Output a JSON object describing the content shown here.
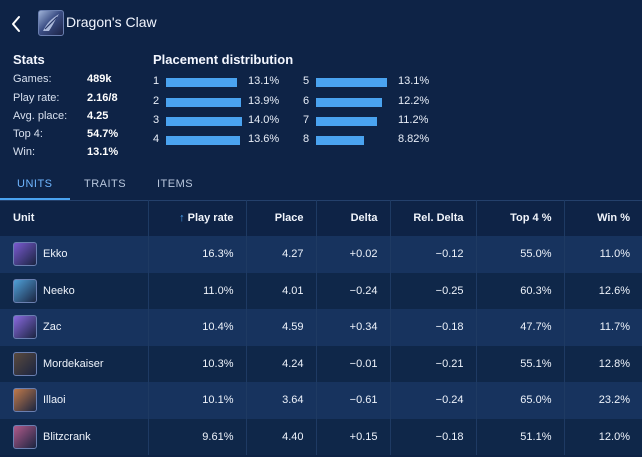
{
  "header": {
    "title": "Dragon's Claw",
    "back_icon": "chevron-left-icon",
    "item_icon": "dragons-claw-item-icon"
  },
  "stats": {
    "title": "Stats",
    "rows": [
      {
        "label": "Games:",
        "value": "489k"
      },
      {
        "label": "Play rate:",
        "value": "2.16/8"
      },
      {
        "label": "Avg. place:",
        "value": "4.25"
      },
      {
        "label": "Top 4:",
        "value": "54.7%"
      },
      {
        "label": "Win:",
        "value": "13.1%"
      }
    ]
  },
  "placement": {
    "title": "Placement distribution",
    "items": [
      {
        "place": "1",
        "pct": "13.1%",
        "value": 13.1
      },
      {
        "place": "2",
        "pct": "13.9%",
        "value": 13.9
      },
      {
        "place": "3",
        "pct": "14.0%",
        "value": 14.0
      },
      {
        "place": "4",
        "pct": "13.6%",
        "value": 13.6
      },
      {
        "place": "5",
        "pct": "13.1%",
        "value": 13.1
      },
      {
        "place": "6",
        "pct": "12.2%",
        "value": 12.2
      },
      {
        "place": "7",
        "pct": "11.2%",
        "value": 11.2
      },
      {
        "place": "8",
        "pct": "8.82%",
        "value": 8.82
      }
    ],
    "bar_color": "#4aa3f0"
  },
  "tabs": [
    {
      "label": "UNITS",
      "active": true
    },
    {
      "label": "TRAITS",
      "active": false
    },
    {
      "label": "ITEMS",
      "active": false
    }
  ],
  "table": {
    "headers": [
      "Unit",
      "Play rate",
      "Place",
      "Delta",
      "Rel. Delta",
      "Top 4 %",
      "Win %"
    ],
    "sort_icon": "sort-up-arrow-icon",
    "rows": [
      {
        "unit": "Ekko",
        "play_rate": "16.3%",
        "place": "4.27",
        "delta": "+0.02",
        "rel_delta": "−0.12",
        "top4": "55.0%",
        "win": "11.0%",
        "avatar_color": "#7a5ad0"
      },
      {
        "unit": "Neeko",
        "play_rate": "11.0%",
        "place": "4.01",
        "delta": "−0.24",
        "rel_delta": "−0.25",
        "top4": "60.3%",
        "win": "12.6%",
        "avatar_color": "#4fa0d8"
      },
      {
        "unit": "Zac",
        "play_rate": "10.4%",
        "place": "4.59",
        "delta": "+0.34",
        "rel_delta": "−0.18",
        "top4": "47.7%",
        "win": "11.7%",
        "avatar_color": "#8a6ae0"
      },
      {
        "unit": "Mordekaiser",
        "play_rate": "10.3%",
        "place": "4.24",
        "delta": "−0.01",
        "rel_delta": "−0.21",
        "top4": "55.1%",
        "win": "12.8%",
        "avatar_color": "#5a4a3e"
      },
      {
        "unit": "Illaoi",
        "play_rate": "10.1%",
        "place": "3.64",
        "delta": "−0.61",
        "rel_delta": "−0.24",
        "top4": "65.0%",
        "win": "23.2%",
        "avatar_color": "#c07a4a"
      },
      {
        "unit": "Blitzcrank",
        "play_rate": "9.61%",
        "place": "4.40",
        "delta": "+0.15",
        "rel_delta": "−0.18",
        "top4": "51.1%",
        "win": "12.0%",
        "avatar_color": "#b05a8a"
      }
    ]
  }
}
